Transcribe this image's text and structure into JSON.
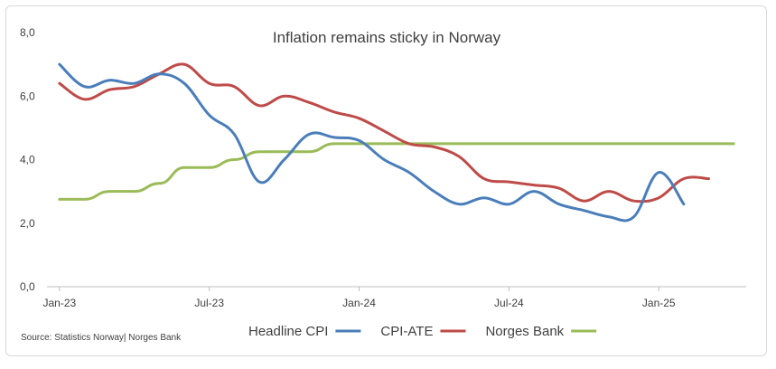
{
  "chart_data": {
    "type": "line",
    "title": "Inflation remains sticky in Norway",
    "source": "Source: Statistics Norway| Norges Bank",
    "xlabel": "",
    "ylabel": "",
    "ylim": [
      0,
      8
    ],
    "y_ticks": [
      "0,0",
      "2,0",
      "4,0",
      "6,0",
      "8,0"
    ],
    "y_tick_values": [
      0,
      2,
      4,
      6,
      8
    ],
    "x_ticks": [
      "Jan-23",
      "Jul-23",
      "Jan-24",
      "Jul-24",
      "Jan-25"
    ],
    "x_tick_months": [
      0,
      6,
      12,
      18,
      24
    ],
    "x_range_months": [
      -0.5,
      27.5
    ],
    "legend_position": "bottom",
    "series": [
      {
        "name": "Headline CPI",
        "color": "#4a7ebb",
        "x_months": [
          0,
          1,
          2,
          3,
          4,
          5,
          6,
          7,
          8,
          9,
          10,
          11,
          12,
          13,
          14,
          15,
          16,
          17,
          18,
          19,
          20,
          21,
          22,
          23,
          24,
          25
        ],
        "values": [
          7.0,
          6.3,
          6.5,
          6.4,
          6.7,
          6.4,
          5.4,
          4.8,
          3.3,
          4.0,
          4.8,
          4.7,
          4.6,
          4.0,
          3.6,
          3.0,
          2.6,
          2.8,
          2.6,
          3.0,
          2.6,
          2.4,
          2.2,
          2.2,
          3.6,
          2.6
        ]
      },
      {
        "name": "CPI-ATE",
        "color": "#be4b48",
        "x_months": [
          0,
          1,
          2,
          3,
          4,
          5,
          6,
          7,
          8,
          9,
          10,
          11,
          12,
          13,
          14,
          15,
          16,
          17,
          18,
          19,
          20,
          21,
          22,
          23,
          24,
          25,
          26
        ],
        "values": [
          6.4,
          5.9,
          6.2,
          6.3,
          6.7,
          7.0,
          6.4,
          6.3,
          5.7,
          6.0,
          5.8,
          5.5,
          5.3,
          4.9,
          4.5,
          4.4,
          4.1,
          3.4,
          3.3,
          3.2,
          3.1,
          2.7,
          3.0,
          2.7,
          2.8,
          3.4,
          3.4
        ]
      },
      {
        "name": "Norges Bank",
        "color": "#9bbb59",
        "x_months": [
          0,
          1,
          2,
          3,
          4,
          5,
          6,
          7,
          8,
          9,
          10,
          11,
          12,
          13,
          14,
          15,
          16,
          17,
          18,
          19,
          20,
          21,
          22,
          23,
          24,
          25,
          26,
          27
        ],
        "values": [
          2.75,
          2.75,
          3.0,
          3.0,
          3.25,
          3.75,
          3.75,
          4.0,
          4.25,
          4.25,
          4.25,
          4.5,
          4.5,
          4.5,
          4.5,
          4.5,
          4.5,
          4.5,
          4.5,
          4.5,
          4.5,
          4.5,
          4.5,
          4.5,
          4.5,
          4.5,
          4.5,
          4.5
        ]
      }
    ]
  }
}
